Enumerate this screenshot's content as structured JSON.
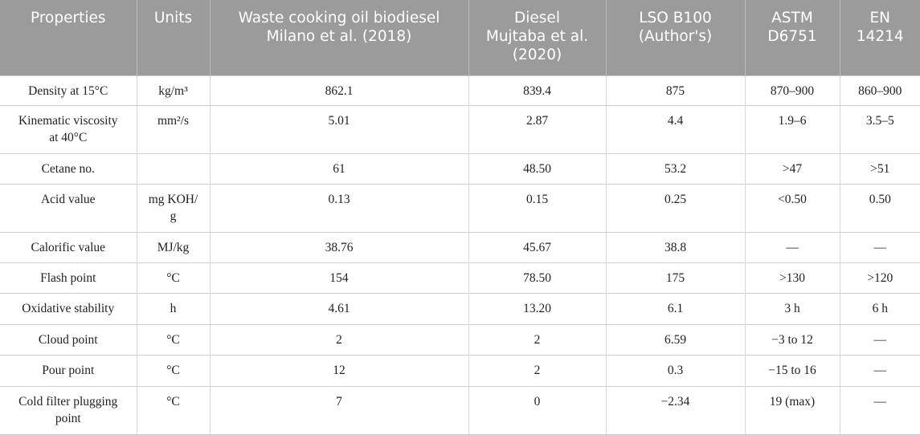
{
  "table": {
    "headers": [
      [
        "Properties"
      ],
      [
        "Units"
      ],
      [
        "Waste cooking oil biodiesel",
        "Milano et al. (2018)"
      ],
      [
        "Diesel",
        "Mujtaba et al.",
        "(2020)"
      ],
      [
        "LSO B100",
        "(Author's)"
      ],
      [
        "ASTM",
        "D6751"
      ],
      [
        "EN",
        "14214"
      ]
    ],
    "rows": [
      {
        "property": [
          "Density at 15°C"
        ],
        "unit": [
          "kg/m³"
        ],
        "waste_cooking_oil": "862.1",
        "diesel": "839.4",
        "lso_b100": "875",
        "astm": "870–900",
        "en": "860–900"
      },
      {
        "property": [
          "Kinematic viscosity",
          "at 40°C"
        ],
        "unit": [
          "mm²/s"
        ],
        "waste_cooking_oil": "5.01",
        "diesel": "2.87",
        "lso_b100": "4.4",
        "astm": "1.9–6",
        "en": "3.5–5"
      },
      {
        "property": [
          "Cetane no."
        ],
        "unit": [
          ""
        ],
        "waste_cooking_oil": "61",
        "diesel": "48.50",
        "lso_b100": "53.2",
        "astm": ">47",
        "en": ">51"
      },
      {
        "property": [
          "Acid value"
        ],
        "unit": [
          "mg KOH/",
          "g"
        ],
        "waste_cooking_oil": "0.13",
        "diesel": "0.15",
        "lso_b100": "0.25",
        "astm": "<0.50",
        "en": "0.50"
      },
      {
        "property": [
          "Calorific value"
        ],
        "unit": [
          "MJ/kg"
        ],
        "waste_cooking_oil": "38.76",
        "diesel": "45.67",
        "lso_b100": "38.8",
        "astm": "—",
        "en": "—"
      },
      {
        "property": [
          "Flash point"
        ],
        "unit": [
          "°C"
        ],
        "waste_cooking_oil": "154",
        "diesel": "78.50",
        "lso_b100": "175",
        "astm": ">130",
        "en": ">120"
      },
      {
        "property": [
          "Oxidative stability"
        ],
        "unit": [
          "h"
        ],
        "waste_cooking_oil": "4.61",
        "diesel": "13.20",
        "lso_b100": "6.1",
        "astm": "3 h",
        "en": "6 h"
      },
      {
        "property": [
          "Cloud point"
        ],
        "unit": [
          "°C"
        ],
        "waste_cooking_oil": "2",
        "diesel": "2",
        "lso_b100": "6.59",
        "astm": "−3 to 12",
        "en": "—"
      },
      {
        "property": [
          "Pour point"
        ],
        "unit": [
          "°C"
        ],
        "waste_cooking_oil": "12",
        "diesel": "2",
        "lso_b100": "0.3",
        "astm": "−15 to 16",
        "en": "—"
      },
      {
        "property": [
          "Cold filter plugging",
          "point"
        ],
        "unit": [
          "°C"
        ],
        "waste_cooking_oil": "7",
        "diesel": "0",
        "lso_b100": "−2.34",
        "astm": "19 (max)",
        "en": "—"
      }
    ]
  }
}
